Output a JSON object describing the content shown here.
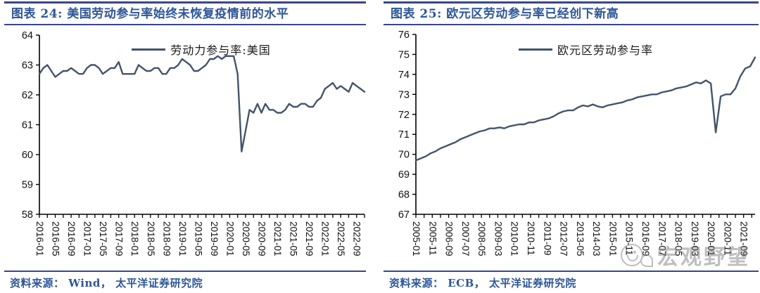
{
  "colors": {
    "rule_navy": "#3A4688",
    "title_navy": "#2D5698",
    "line_slate": "#44546A",
    "axis_black": "#000000",
    "watermark_gray": "#7f7f7f"
  },
  "watermark": {
    "text": "宏观野望"
  },
  "chart_data": [
    {
      "type": "line",
      "title": "图表 24: 美国劳动参与率始终未恢复疫情前的水平",
      "legend": "劳动力参与率:美国",
      "source": "资料来源：  Wind，  太平洋证券研究院",
      "xlabel": "",
      "ylabel": "",
      "grid": false,
      "legend_position": "top-center",
      "line_color": "#44546A",
      "ylim": [
        58,
        64
      ],
      "yticks": [
        58,
        59,
        60,
        61,
        62,
        63,
        64
      ],
      "dt": 1,
      "xtick_t": [
        0,
        4,
        8,
        12,
        16,
        20,
        24,
        28,
        32,
        36,
        40,
        44,
        48,
        52,
        56,
        60,
        64,
        68,
        72,
        76,
        80
      ],
      "xtick_labels": [
        "2016-01",
        "2016-05",
        "2016-09",
        "2017-01",
        "2017-05",
        "2017-09",
        "2018-01",
        "2018-05",
        "2018-09",
        "2019-01",
        "2019-05",
        "2019-09",
        "2020-01",
        "2020-05",
        "2020-09",
        "2021-01",
        "2021-05",
        "2021-09",
        "2022-01",
        "2022-05",
        "2022-09"
      ],
      "series": [
        {
          "name": "劳动力参与率:美国",
          "values": [
            62.7,
            62.9,
            63.0,
            62.8,
            62.6,
            62.7,
            62.8,
            62.8,
            62.9,
            62.8,
            62.7,
            62.7,
            62.9,
            63.0,
            63.0,
            62.9,
            62.7,
            62.8,
            62.9,
            62.9,
            63.1,
            62.7,
            62.7,
            62.7,
            62.7,
            63.0,
            62.9,
            62.8,
            62.8,
            62.9,
            62.9,
            62.7,
            62.7,
            62.9,
            62.9,
            63.0,
            63.2,
            63.1,
            63.0,
            62.8,
            62.8,
            62.9,
            63.0,
            63.2,
            63.2,
            63.3,
            63.2,
            63.3,
            63.3,
            63.3,
            62.7,
            60.1,
            60.8,
            61.5,
            61.4,
            61.7,
            61.4,
            61.7,
            61.5,
            61.5,
            61.4,
            61.4,
            61.5,
            61.7,
            61.6,
            61.6,
            61.7,
            61.7,
            61.6,
            61.6,
            61.8,
            61.9,
            62.2,
            62.3,
            62.4,
            62.2,
            62.3,
            62.2,
            62.1,
            62.4,
            62.3,
            62.2,
            62.1
          ]
        }
      ]
    },
    {
      "type": "line",
      "title": "图表 25:  欧元区劳动参与率已经创下新高",
      "legend": "欧元区劳动参与率",
      "source": "资料来源：  ECB，  太平洋证券研究院",
      "xlabel": "",
      "ylabel": "",
      "grid": false,
      "legend_position": "top-center",
      "line_color": "#44546A",
      "ylim": [
        67,
        76
      ],
      "yticks": [
        67,
        68,
        69,
        70,
        71,
        72,
        73,
        74,
        75,
        76
      ],
      "dt": 3,
      "xtick_t": [
        0,
        10,
        20,
        30,
        40,
        50,
        60,
        70,
        80,
        90,
        100,
        110,
        120,
        130,
        140,
        150,
        160,
        170,
        180,
        190,
        200
      ],
      "xtick_labels": [
        "2005-01",
        "2005-11",
        "2006-09",
        "2007-07",
        "2008-05",
        "2009-03",
        "2010-01",
        "2010-11",
        "2011-09",
        "2012-07",
        "2013-05",
        "2014-03",
        "2015-01",
        "2015-11",
        "2016-09",
        "2017-07",
        "2018-05",
        "2019-03",
        "2020-01",
        "2020-11",
        "2021-09"
      ],
      "series": [
        {
          "name": "欧元区劳动参与率",
          "values": [
            69.7,
            69.8,
            69.9,
            70.05,
            70.15,
            70.3,
            70.4,
            70.5,
            70.6,
            70.75,
            70.85,
            70.95,
            71.05,
            71.15,
            71.2,
            71.3,
            71.3,
            71.35,
            71.3,
            71.4,
            71.45,
            71.5,
            71.5,
            71.6,
            71.6,
            71.7,
            71.75,
            71.8,
            71.9,
            72.05,
            72.15,
            72.2,
            72.2,
            72.35,
            72.45,
            72.4,
            72.5,
            72.4,
            72.35,
            72.45,
            72.5,
            72.55,
            72.6,
            72.7,
            72.75,
            72.85,
            72.9,
            72.95,
            73.0,
            73.0,
            73.1,
            73.15,
            73.2,
            73.3,
            73.35,
            73.4,
            73.5,
            73.6,
            73.55,
            73.7,
            73.55,
            71.1,
            72.9,
            73.0,
            73.0,
            73.3,
            73.9,
            74.3,
            74.4,
            74.85
          ]
        }
      ]
    }
  ]
}
